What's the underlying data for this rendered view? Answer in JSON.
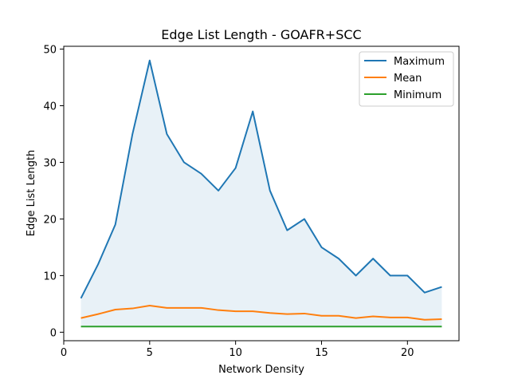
{
  "chart_data": {
    "type": "line",
    "title": "Edge List Length - GOAFR+SCC",
    "xlabel": "Network Density",
    "ylabel": "Edge List Length",
    "xlim": [
      0,
      23
    ],
    "ylim": [
      -1.5,
      50.5
    ],
    "xticks": [
      0,
      5,
      10,
      15,
      20
    ],
    "yticks": [
      0,
      10,
      20,
      30,
      40,
      50
    ],
    "grid": false,
    "legend_position": "top-right",
    "fill_between": {
      "upper": "Maximum",
      "lower": "Minimum",
      "color": "#1f77b4",
      "alpha": 0.1
    },
    "x": [
      1,
      2,
      3,
      4,
      5,
      6,
      7,
      8,
      9,
      10,
      11,
      12,
      13,
      14,
      15,
      16,
      17,
      18,
      19,
      20,
      21,
      22
    ],
    "series": [
      {
        "name": "Maximum",
        "color": "#1f77b4",
        "values": [
          6,
          12,
          19,
          35,
          48,
          35,
          30,
          28,
          25,
          29,
          39,
          25,
          18,
          20,
          15,
          13,
          10,
          13,
          10,
          10,
          7,
          8
        ]
      },
      {
        "name": "Mean",
        "color": "#ff7f0e",
        "values": [
          2.5,
          3.2,
          4.0,
          4.2,
          4.7,
          4.3,
          4.3,
          4.3,
          3.9,
          3.7,
          3.7,
          3.4,
          3.2,
          3.3,
          2.9,
          2.9,
          2.5,
          2.8,
          2.6,
          2.6,
          2.2,
          2.3
        ]
      },
      {
        "name": "Minimum",
        "color": "#2ca02c",
        "values": [
          1,
          1,
          1,
          1,
          1,
          1,
          1,
          1,
          1,
          1,
          1,
          1,
          1,
          1,
          1,
          1,
          1,
          1,
          1,
          1,
          1,
          1
        ]
      }
    ]
  }
}
